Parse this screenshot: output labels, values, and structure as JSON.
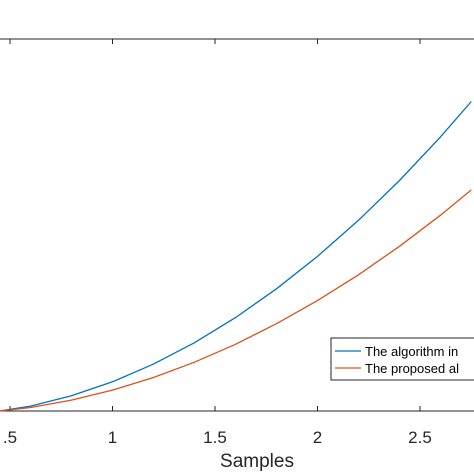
{
  "chart_data": {
    "type": "line",
    "xlabel": "Samples",
    "ylabel": "",
    "title": "",
    "xlim": [
      0.45,
      2.75
    ],
    "ylim": [
      0.0,
      1.0
    ],
    "xticks": [
      0.5,
      1,
      1.5,
      2,
      2.5
    ],
    "xtick_labels": [
      ".5",
      "1",
      "1.5",
      "2",
      "2.5"
    ],
    "grid": false,
    "legend_position": "bottom-right",
    "series": [
      {
        "name": "The algorithm in",
        "color": "#0072BD",
        "x": [
          0.45,
          0.6,
          0.8,
          1.0,
          1.2,
          1.4,
          1.6,
          1.8,
          2.0,
          2.2,
          2.4,
          2.6,
          2.75
        ],
        "y": [
          0.0,
          0.016,
          0.0498,
          0.0958,
          0.1538,
          0.224,
          0.3062,
          0.4005,
          0.5069,
          0.6253,
          0.7559,
          0.8986,
          1.0148
        ]
      },
      {
        "name": "The proposed al",
        "color": "#D95319",
        "x": [
          0.45,
          0.6,
          0.8,
          1.0,
          1.2,
          1.4,
          1.6,
          1.8,
          2.0,
          2.2,
          2.4,
          2.6,
          2.75
        ],
        "y": [
          0.0,
          0.0114,
          0.0356,
          0.0684,
          0.1099,
          0.16,
          0.2187,
          0.2861,
          0.3621,
          0.4467,
          0.54,
          0.6419,
          0.7249
        ]
      }
    ]
  }
}
